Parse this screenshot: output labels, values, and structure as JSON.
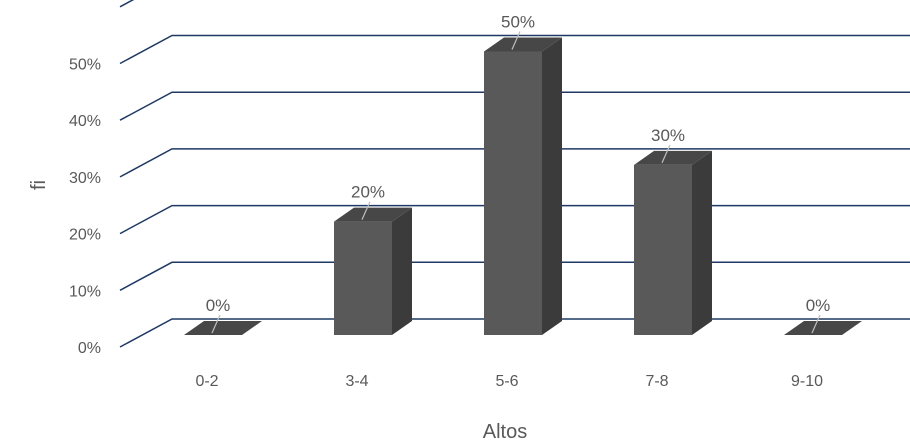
{
  "chart_data": {
    "type": "bar",
    "categories": [
      "0-2",
      "3-4",
      "5-6",
      "7-8",
      "9-10"
    ],
    "values": [
      0,
      20,
      50,
      30,
      0
    ],
    "data_labels": [
      "0%",
      "20%",
      "50%",
      "30%",
      "0%"
    ],
    "y_ticks": [
      "0%",
      "10%",
      "20%",
      "30%",
      "40%",
      "50%"
    ],
    "ylim": [
      0,
      50
    ],
    "xlabel": "Altos",
    "ylabel": "fi",
    "grid": true,
    "style": "3d-column",
    "colors": {
      "bar_front": "#595959",
      "bar_side": "#3b3b3b",
      "bar_top": "#474747",
      "grid": "#1f3864"
    }
  }
}
